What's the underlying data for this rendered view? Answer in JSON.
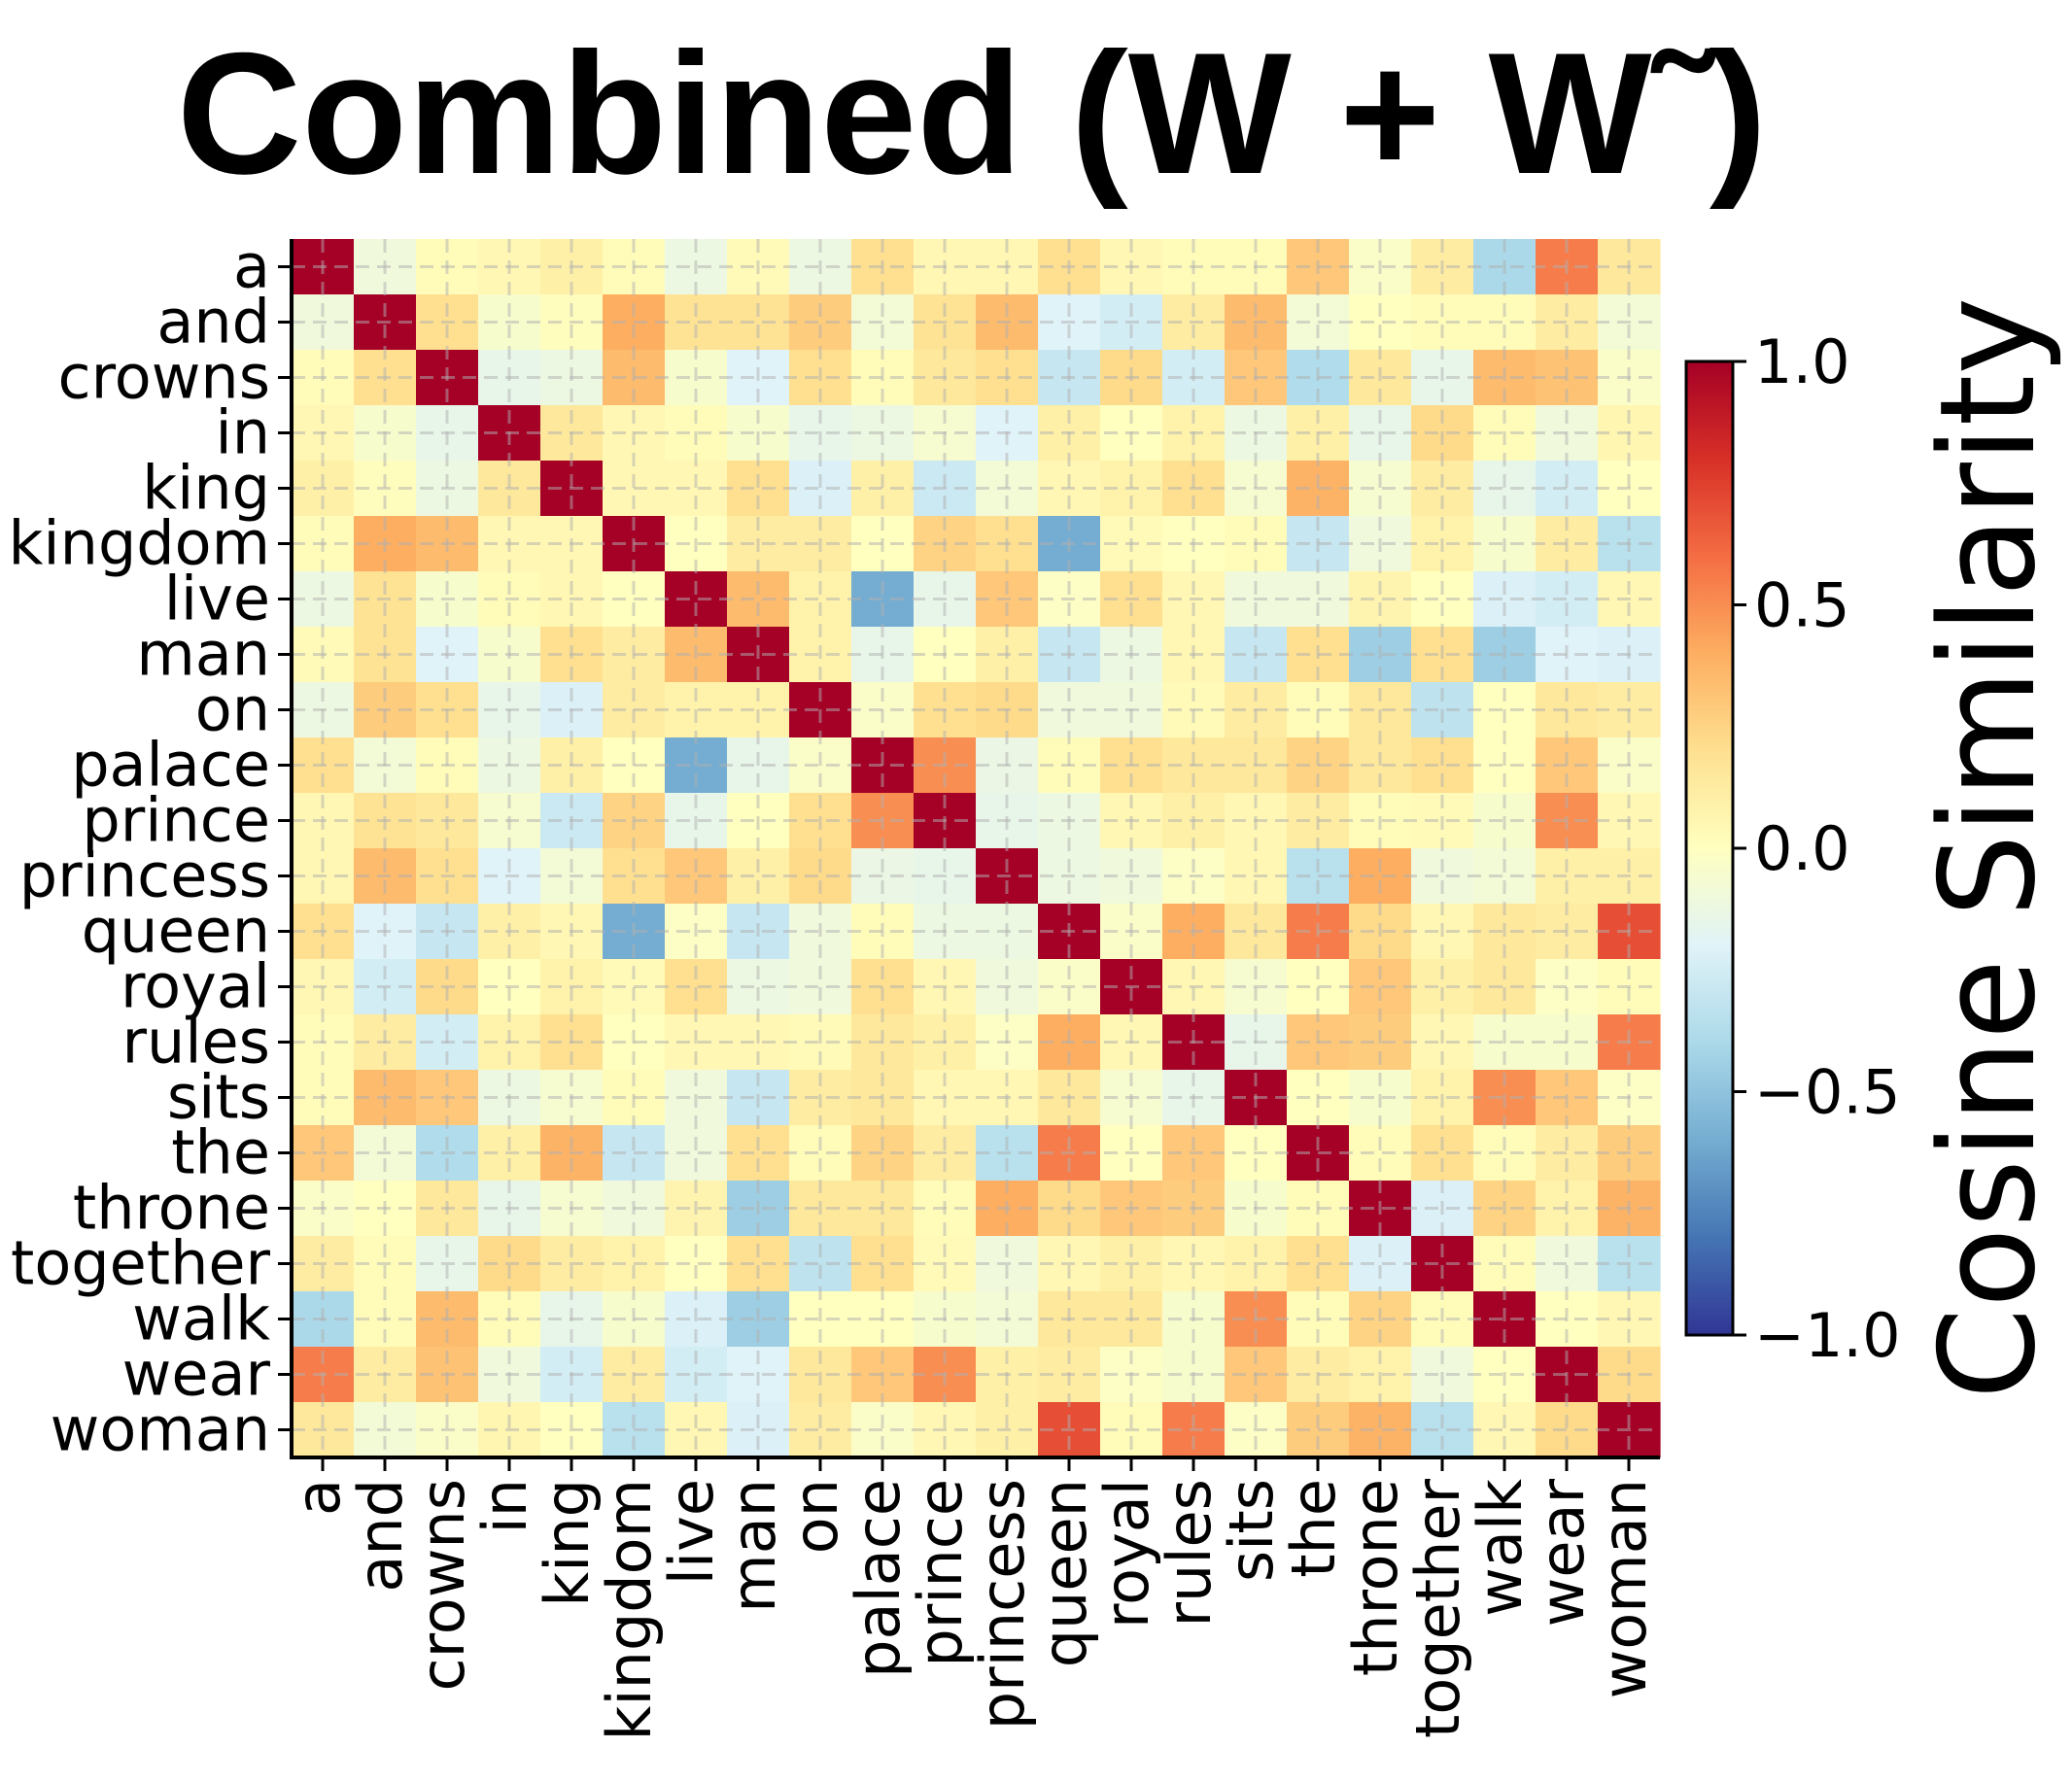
{
  "chart_data": {
    "type": "heatmap",
    "title": "Combined (W + W˜)",
    "colorbar_label": "Cosine Similarity",
    "colormap": "RdYlBu_r",
    "vmin": -1.0,
    "vmax": 1.0,
    "colorbar_ticks": [
      "1.0",
      "0.5",
      "0.0",
      "−0.5",
      "−1.0"
    ],
    "colorbar_tick_values": [
      1.0,
      0.5,
      0.0,
      -0.5,
      -1.0
    ],
    "grid": true,
    "labels": [
      "a",
      "and",
      "crowns",
      "in",
      "king",
      "kingdom",
      "live",
      "man",
      "on",
      "palace",
      "prince",
      "princess",
      "queen",
      "royal",
      "rules",
      "sits",
      "the",
      "throne",
      "together",
      "walk",
      "wear",
      "woman"
    ],
    "upper_triangle": [
      [
        -0.1,
        0.02,
        0.05,
        0.1,
        0.02,
        -0.12,
        0.03,
        -0.12,
        0.2,
        0.05,
        0.05,
        0.2,
        0.05,
        0.02,
        0.02,
        0.3,
        -0.03,
        0.12,
        -0.4,
        0.55,
        0.15
      ],
      [
        0.2,
        -0.05,
        0.01,
        0.4,
        0.18,
        0.18,
        0.28,
        -0.08,
        0.18,
        0.35,
        -0.2,
        -0.25,
        0.12,
        0.35,
        -0.08,
        0.0,
        0.02,
        0.02,
        0.12,
        -0.08
      ],
      [
        -0.15,
        -0.12,
        0.35,
        -0.05,
        -0.2,
        0.2,
        0.02,
        0.15,
        0.2,
        -0.3,
        0.22,
        -0.25,
        0.3,
        -0.38,
        0.15,
        -0.15,
        0.35,
        0.32,
        -0.03
      ],
      [
        0.15,
        0.05,
        0.02,
        -0.05,
        -0.15,
        -0.12,
        -0.06,
        -0.2,
        0.1,
        0.0,
        0.08,
        -0.12,
        0.1,
        -0.15,
        0.22,
        0.02,
        -0.1,
        0.06
      ],
      [
        0.05,
        0.05,
        0.2,
        -0.22,
        0.1,
        -0.28,
        -0.08,
        0.05,
        0.08,
        0.2,
        -0.06,
        0.38,
        -0.06,
        0.12,
        -0.15,
        -0.25,
        0.0
      ],
      [
        0.0,
        0.12,
        0.12,
        0.0,
        0.25,
        0.2,
        -0.6,
        0.03,
        0.0,
        0.02,
        -0.3,
        -0.1,
        0.08,
        -0.05,
        0.12,
        -0.35
      ],
      [
        0.35,
        0.08,
        -0.6,
        -0.15,
        0.3,
        -0.02,
        0.2,
        0.05,
        -0.1,
        -0.1,
        0.07,
        0.0,
        -0.22,
        -0.25,
        0.05
      ],
      [
        0.08,
        -0.15,
        0.0,
        0.1,
        -0.3,
        -0.12,
        0.05,
        -0.3,
        0.2,
        -0.45,
        0.2,
        -0.45,
        -0.2,
        -0.22
      ],
      [
        -0.03,
        0.2,
        0.22,
        -0.1,
        -0.1,
        0.03,
        0.12,
        0.02,
        0.15,
        -0.33,
        0.0,
        0.15,
        0.12
      ],
      [
        0.5,
        -0.13,
        0.02,
        0.2,
        0.15,
        0.15,
        0.25,
        0.15,
        0.2,
        0.0,
        0.3,
        -0.03
      ],
      [
        -0.15,
        -0.12,
        0.05,
        0.1,
        0.05,
        0.12,
        0.02,
        0.03,
        -0.05,
        0.5,
        0.05
      ],
      [
        -0.12,
        -0.1,
        -0.02,
        0.05,
        -0.35,
        0.4,
        -0.1,
        -0.08,
        0.1,
        0.1
      ],
      [
        -0.03,
        0.4,
        0.15,
        0.55,
        0.22,
        0.05,
        0.15,
        0.12,
        0.7
      ],
      [
        0.05,
        -0.06,
        0.0,
        0.3,
        0.1,
        0.15,
        -0.02,
        0.02
      ],
      [
        -0.15,
        0.3,
        0.28,
        0.05,
        -0.05,
        -0.05,
        0.55
      ],
      [
        0.0,
        -0.05,
        0.08,
        0.5,
        0.3,
        -0.02
      ],
      [
        0.02,
        0.2,
        0.02,
        0.12,
        0.28
      ],
      [
        -0.22,
        0.25,
        0.08,
        0.38
      ],
      [
        0.02,
        -0.1,
        -0.35
      ],
      [
        0.0,
        0.05
      ],
      [
        0.22
      ],
      []
    ],
    "diagonal": 1.0,
    "symmetric": true
  }
}
